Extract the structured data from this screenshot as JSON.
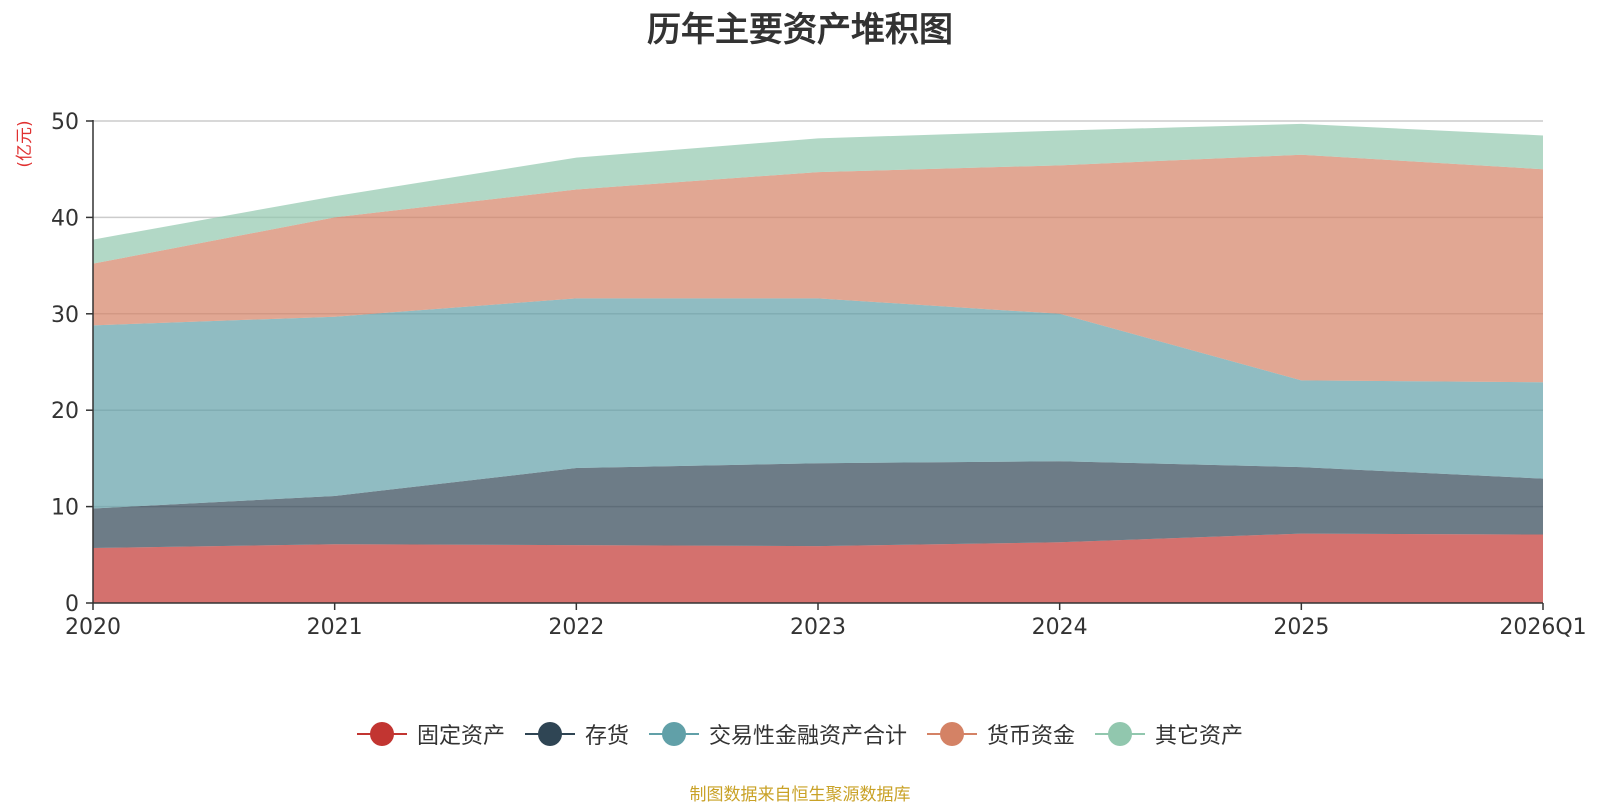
{
  "chart_data": {
    "type": "area",
    "stacked": true,
    "title": "历年主要资产堆积图",
    "ylabel": "(亿元)",
    "xlabel": "",
    "categories": [
      "2020",
      "2021",
      "2022",
      "2023",
      "2024",
      "2025",
      "2026Q1"
    ],
    "ylim": [
      0,
      50
    ],
    "yticks": [
      0,
      10,
      20,
      30,
      40,
      50
    ],
    "grid": true,
    "legend_position": "bottom",
    "series": [
      {
        "name": "固定资产",
        "color": "#c23531",
        "values": [
          5.7,
          6.1,
          6.0,
          5.9,
          6.3,
          7.2,
          7.1
        ]
      },
      {
        "name": "存货",
        "color": "#2f4554",
        "values": [
          4.1,
          5.0,
          8.0,
          8.6,
          8.4,
          6.9,
          5.8
        ]
      },
      {
        "name": "交易性金融资产合计",
        "color": "#61a0a8",
        "values": [
          19.0,
          18.6,
          17.6,
          17.1,
          15.3,
          9.0,
          10.0
        ]
      },
      {
        "name": "货币资金",
        "color": "#d48265",
        "values": [
          6.4,
          10.3,
          11.3,
          13.1,
          15.4,
          23.4,
          22.1
        ]
      },
      {
        "name": "其它资产",
        "color": "#91c7ae",
        "values": [
          2.5,
          2.2,
          3.3,
          3.5,
          3.6,
          3.2,
          3.5
        ]
      }
    ]
  },
  "source_note": "制图数据来自恒生聚源数据库"
}
